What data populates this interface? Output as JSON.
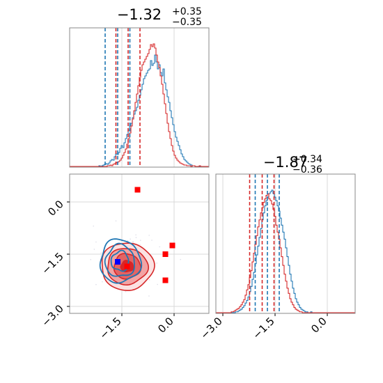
{
  "chart_data": [
    {
      "type": "histogram",
      "panel": "top-left marginal (parameter 1)",
      "title": {
        "value": "−1.32",
        "sup": "+0.35",
        "sub": "−0.35"
      },
      "xlim": [
        -3.0,
        1.0
      ],
      "grid": true,
      "series": [
        {
          "color": "#1f77b4",
          "quantiles": [
            -1.98,
            -1.62,
            -1.27
          ],
          "bin_start": -3.0,
          "bin_width": 0.04,
          "counts": [
            0,
            0,
            0,
            0,
            0,
            0,
            0,
            0,
            0,
            0,
            0,
            0,
            0,
            0,
            0,
            0,
            0,
            0,
            0,
            0,
            0,
            1,
            0,
            1,
            2,
            3,
            4,
            3,
            5,
            8,
            10,
            9,
            14,
            18,
            17,
            20,
            26,
            30,
            27,
            34,
            40,
            46,
            52,
            58,
            62,
            70,
            75,
            80,
            85,
            95,
            102,
            110,
            118,
            126,
            130,
            134,
            138,
            140,
            152,
            145,
            148,
            160,
            150,
            140,
            146,
            135,
            130,
            140,
            120,
            110,
            100,
            92,
            80,
            70,
            60,
            50,
            42,
            36,
            30,
            24,
            18,
            14,
            10,
            8,
            6,
            4,
            3,
            2,
            1,
            1,
            0,
            0,
            0,
            0,
            0,
            0,
            0,
            0,
            0,
            0,
            0,
            0
          ]
        },
        {
          "color": "#d62728",
          "quantiles": [
            -1.67,
            -1.32,
            -0.98
          ],
          "bin_start": -3.0,
          "bin_width": 0.04,
          "counts": [
            0,
            0,
            0,
            0,
            0,
            0,
            0,
            0,
            0,
            0,
            0,
            0,
            0,
            0,
            0,
            0,
            0,
            0,
            0,
            0,
            0,
            0,
            0,
            0,
            0,
            0,
            0,
            1,
            1,
            2,
            1,
            3,
            4,
            5,
            6,
            7,
            9,
            12,
            16,
            20,
            25,
            32,
            40,
            48,
            58,
            68,
            80,
            92,
            104,
            116,
            128,
            138,
            146,
            150,
            154,
            158,
            162,
            168,
            175,
            172,
            176,
            170,
            160,
            150,
            142,
            130,
            118,
            104,
            90,
            76,
            62,
            50,
            40,
            30,
            22,
            16,
            12,
            9,
            7,
            5,
            4,
            3,
            2,
            2,
            1,
            1,
            1,
            0,
            1,
            1,
            0,
            0,
            0,
            1,
            0,
            0,
            0,
            0,
            0,
            0
          ]
        }
      ]
    },
    {
      "type": "contour",
      "panel": "bottom-left joint (parameter 1 vs parameter 2)",
      "xlim": [
        -3.0,
        1.0
      ],
      "ylim": [
        -3.2,
        0.8
      ],
      "xticks": [
        "−1.5",
        "0.0"
      ],
      "xtick_values": [
        -1.5,
        0.0
      ],
      "yticks": [
        "0.0",
        "−1.5",
        "−3.0"
      ],
      "ytick_values": [
        0.0,
        -1.5,
        -3.0
      ],
      "grid": true,
      "blue_contours": {
        "color": "#1f77b4",
        "center": [
          -1.55,
          -1.7
        ],
        "levels": [
          {
            "rx": 0.58,
            "ry": 0.62,
            "wobble": 0.1
          },
          {
            "rx": 0.42,
            "ry": 0.46,
            "wobble": 0.12
          },
          {
            "rx": 0.25,
            "ry": 0.28,
            "wobble": 0.14
          }
        ]
      },
      "red_contours": {
        "color": "#d62728",
        "center": [
          -1.35,
          -1.85
        ],
        "levels": [
          {
            "rx": 0.75,
            "ry": 0.68,
            "wobble": 0.06,
            "fill": "#fbe1e1"
          },
          {
            "rx": 0.58,
            "ry": 0.52,
            "wobble": 0.07,
            "fill": "#f2a3a3"
          },
          {
            "rx": 0.38,
            "ry": 0.36,
            "wobble": 0.08,
            "fill": "#e36464"
          },
          {
            "rx": 0.18,
            "ry": 0.16,
            "wobble": 0.1,
            "fill": "#d62728"
          }
        ]
      },
      "red_markers": [
        {
          "x": -1.05,
          "y": 0.35
        },
        {
          "x": -0.05,
          "y": -1.25
        },
        {
          "x": -0.25,
          "y": -1.5
        },
        {
          "x": -0.25,
          "y": -2.25
        },
        {
          "x": -1.35,
          "y": -1.85
        }
      ],
      "blue_markers": [
        {
          "x": -1.62,
          "y": -1.72
        }
      ]
    },
    {
      "type": "histogram",
      "panel": "bottom-right marginal (parameter 2)",
      "title": {
        "value": "−1.87",
        "sup": "+0.34",
        "sub": "−0.36"
      },
      "xlim": [
        -3.2,
        0.8
      ],
      "xticks": [
        "−3.0",
        "−1.5",
        "0.0"
      ],
      "xtick_values": [
        -3.0,
        -1.5,
        0.0
      ],
      "grid": true,
      "series": [
        {
          "color": "#1f77b4",
          "quantiles": [
            -2.07,
            -1.72,
            -1.38
          ],
          "bin_start": -3.2,
          "bin_width": 0.04,
          "counts": [
            0,
            0,
            0,
            0,
            0,
            0,
            0,
            0,
            0,
            0,
            0,
            0,
            0,
            0,
            1,
            1,
            2,
            3,
            4,
            6,
            8,
            11,
            14,
            18,
            24,
            30,
            38,
            46,
            56,
            66,
            76,
            86,
            96,
            106,
            114,
            122,
            128,
            132,
            136,
            138,
            140,
            136,
            132,
            128,
            122,
            116,
            108,
            100,
            92,
            84,
            74,
            64,
            54,
            44,
            36,
            28,
            22,
            16,
            12,
            9,
            6,
            4,
            3,
            2,
            1,
            1,
            0,
            0,
            1,
            0,
            0,
            0,
            0,
            0,
            0,
            0,
            0,
            0,
            0,
            0,
            0,
            0,
            0,
            0,
            0,
            0,
            0,
            0,
            0,
            0,
            0,
            0,
            0,
            0,
            0,
            0,
            0,
            0,
            0,
            0
          ]
        },
        {
          "color": "#d62728",
          "quantiles": [
            -2.23,
            -1.87,
            -1.53
          ],
          "bin_start": -3.2,
          "bin_width": 0.04,
          "counts": [
            0,
            0,
            0,
            0,
            0,
            0,
            0,
            0,
            0,
            0,
            0,
            1,
            1,
            2,
            3,
            4,
            5,
            7,
            9,
            12,
            15,
            20,
            26,
            32,
            40,
            48,
            58,
            68,
            78,
            88,
            98,
            106,
            114,
            120,
            126,
            130,
            134,
            136,
            130,
            128,
            124,
            118,
            110,
            100,
            92,
            84,
            74,
            64,
            54,
            44,
            36,
            28,
            22,
            16,
            12,
            9,
            6,
            4,
            3,
            2,
            1,
            1,
            0,
            0,
            0,
            0,
            0,
            0,
            0,
            0,
            0,
            0,
            0,
            0,
            0,
            0,
            0,
            0,
            0,
            0,
            0,
            0,
            0,
            0,
            0,
            0,
            0,
            0,
            0,
            0,
            0,
            0,
            0,
            0,
            0,
            0,
            0,
            0,
            0,
            0
          ]
        }
      ]
    }
  ]
}
